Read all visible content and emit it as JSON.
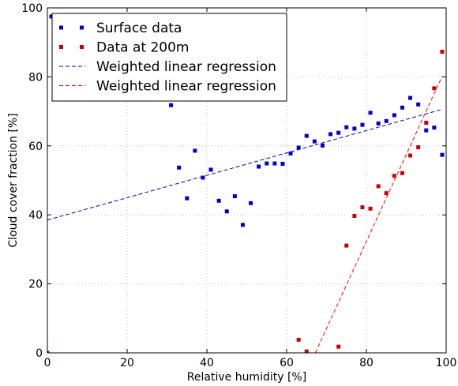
{
  "chart_data": {
    "type": "scatter",
    "title": "",
    "xlabel": "Relative humidity [%]",
    "ylabel": "Cloud cover fraction [%]",
    "xlim": [
      0,
      100
    ],
    "ylim": [
      0,
      100
    ],
    "xticks": [
      "0",
      "20",
      "40",
      "60",
      "80",
      "100"
    ],
    "yticks": [
      "0",
      "20",
      "40",
      "60",
      "80",
      "100"
    ],
    "grid": true,
    "legend_position": "top-left",
    "series": [
      {
        "name": "Surface data",
        "kind": "scatter",
        "color": "#0000cc",
        "points": [
          [
            1,
            97.5
          ],
          [
            31,
            71.8
          ],
          [
            33,
            53.7
          ],
          [
            35,
            44.8
          ],
          [
            37,
            58.6
          ],
          [
            39,
            50.8
          ],
          [
            41,
            53.1
          ],
          [
            43,
            44.1
          ],
          [
            45,
            41
          ],
          [
            47,
            45.4
          ],
          [
            49,
            37.1
          ],
          [
            51,
            43.4
          ],
          [
            53,
            54
          ],
          [
            55,
            54.9
          ],
          [
            57,
            54.9
          ],
          [
            59,
            54.8
          ],
          [
            61,
            57.8
          ],
          [
            63,
            59.5
          ],
          [
            65,
            62.9
          ],
          [
            67,
            61.3
          ],
          [
            69,
            60.1
          ],
          [
            71,
            63.4
          ],
          [
            73,
            63.8
          ],
          [
            75,
            65.4
          ],
          [
            77,
            65
          ],
          [
            79,
            66.1
          ],
          [
            81,
            69.6
          ],
          [
            83,
            66.5
          ],
          [
            85,
            67.2
          ],
          [
            87,
            68.9
          ],
          [
            89,
            71.1
          ],
          [
            91,
            73.9
          ],
          [
            93,
            72
          ],
          [
            95,
            64.5
          ],
          [
            97,
            65.3
          ],
          [
            99,
            57.4
          ]
        ]
      },
      {
        "name": "Data at 200m",
        "kind": "scatter",
        "color": "#cc0000",
        "points": [
          [
            0,
            0
          ],
          [
            63,
            3.8
          ],
          [
            65,
            0.4
          ],
          [
            73,
            1.8
          ],
          [
            75,
            31.1
          ],
          [
            77,
            39.7
          ],
          [
            79,
            42.2
          ],
          [
            81,
            41.8
          ],
          [
            83,
            48.3
          ],
          [
            85,
            46.3
          ],
          [
            87,
            51.3
          ],
          [
            89,
            52.1
          ],
          [
            91,
            57.2
          ],
          [
            93,
            59.6
          ],
          [
            95,
            66.7
          ],
          [
            97,
            76.7
          ],
          [
            99,
            87.3
          ]
        ]
      },
      {
        "name": "Weighted linear regression",
        "kind": "line",
        "style": "dashed",
        "color": "#0000cc",
        "points": [
          [
            0,
            38.5
          ],
          [
            99,
            70.6
          ]
        ]
      },
      {
        "name": "Weighted linear regression",
        "kind": "line",
        "style": "dashed",
        "color": "#ff0000",
        "points": [
          [
            67.2,
            0
          ],
          [
            99,
            80.2
          ]
        ]
      }
    ]
  }
}
